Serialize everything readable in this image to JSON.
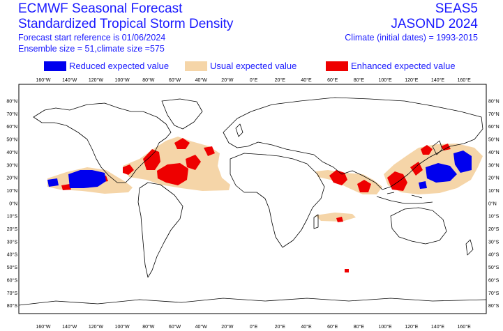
{
  "header": {
    "title_line1": "ECMWF Seasonal Forecast",
    "title_line2": "Standardized Tropical Storm Density",
    "start_reference": "Forecast start reference is 01/06/2024",
    "ensemble": "Ensemble size = 51,climate size =575",
    "system": "SEAS5",
    "period": "JASOND 2024",
    "climate": "Climate (initial dates) = 1993-2015"
  },
  "legend": [
    {
      "label": "Reduced expected value",
      "color": "#0000ee"
    },
    {
      "label": "Usual expected value",
      "color": "#f5d5a8"
    },
    {
      "label": "Enhanced expected value",
      "color": "#ee0000"
    }
  ],
  "lon_ticks": [
    "160°W",
    "140°W",
    "120°W",
    "100°W",
    "80°W",
    "60°W",
    "40°W",
    "20°W",
    "0°E",
    "20°E",
    "40°E",
    "60°E",
    "80°E",
    "100°E",
    "120°E",
    "140°E",
    "160°E"
  ],
  "lat_ticks": [
    "80°N",
    "70°N",
    "60°N",
    "50°N",
    "40°N",
    "30°N",
    "20°N",
    "10°N",
    "0°N",
    "10°S",
    "20°S",
    "30°S",
    "40°S",
    "50°S",
    "60°S",
    "70°S",
    "80°S"
  ],
  "colors": {
    "text": "#1a1aff",
    "coast": "#000000",
    "usual": "#f5d5a8",
    "reduced": "#0000ee",
    "enhanced": "#ee0000"
  }
}
